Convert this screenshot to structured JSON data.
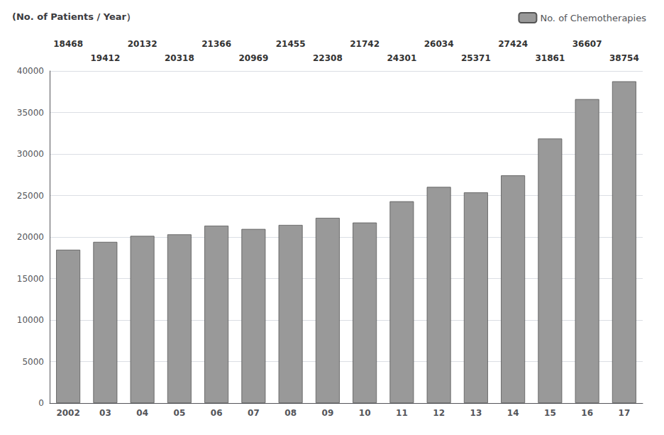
{
  "chart_data": {
    "type": "bar",
    "ylabel": "(No. of Patients / Year）",
    "categories": [
      "2002",
      "03",
      "04",
      "05",
      "06",
      "07",
      "08",
      "09",
      "10",
      "11",
      "12",
      "13",
      "14",
      "15",
      "16",
      "17"
    ],
    "series": [
      {
        "name": "No. of Chemotherapies",
        "color": "#999999",
        "values": [
          18468,
          19412,
          20132,
          20318,
          21366,
          20969,
          21455,
          22308,
          21742,
          24301,
          26034,
          25371,
          27424,
          31861,
          36607,
          38754
        ]
      }
    ],
    "annotations": [
      {
        "text": "18468",
        "category": "2002"
      },
      {
        "text": "20132",
        "category": "04"
      },
      {
        "text": "21366",
        "category": "06"
      },
      {
        "text": "21455",
        "category": "08"
      },
      {
        "text": "21742",
        "category": "10"
      },
      {
        "text": "26034",
        "category": "12"
      },
      {
        "text": "27424",
        "category": "14"
      },
      {
        "text": "36607",
        "category": "16"
      },
      {
        "text": "19412",
        "category": "03"
      },
      {
        "text": "20318",
        "category": "05"
      },
      {
        "text": "20969",
        "category": "07"
      },
      {
        "text": "22308",
        "category": "09"
      },
      {
        "text": "24301",
        "category": "11"
      },
      {
        "text": "25371",
        "category": "13"
      },
      {
        "text": "31861",
        "category": "15"
      },
      {
        "text": "38754",
        "category": "17"
      }
    ],
    "ylim": [
      0,
      40000
    ],
    "yticks": [
      0,
      5000,
      10000,
      15000,
      20000,
      25000,
      30000,
      35000,
      40000
    ],
    "grid": true,
    "legend": "upper right"
  }
}
